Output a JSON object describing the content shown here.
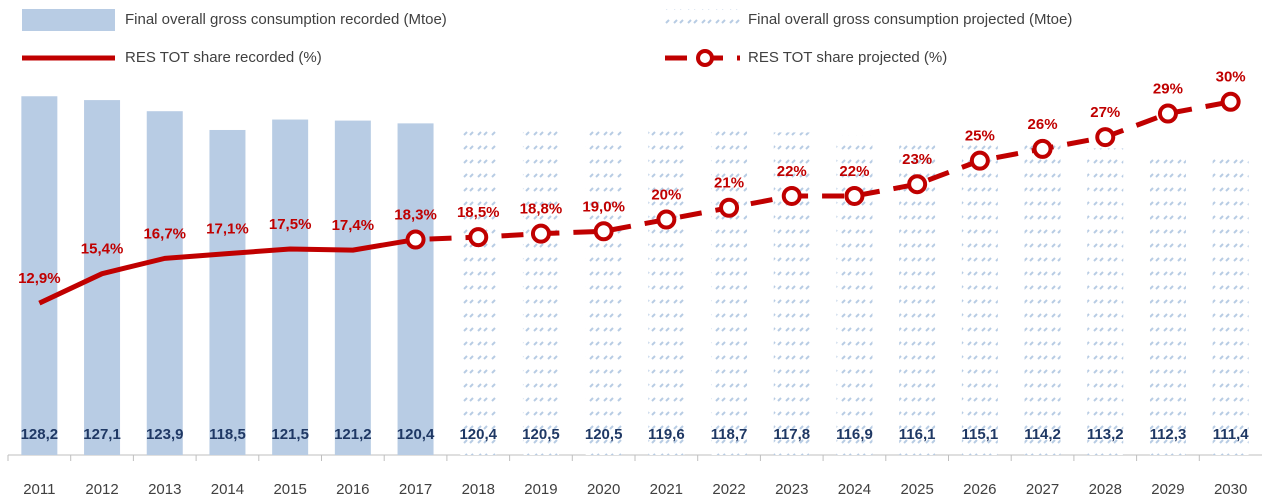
{
  "chart_data": {
    "type": "bar-line",
    "categories": [
      "2011",
      "2012",
      "2013",
      "2014",
      "2015",
      "2016",
      "2017",
      "2018",
      "2019",
      "2020",
      "2021",
      "2022",
      "2023",
      "2024",
      "2025",
      "2026",
      "2027",
      "2028",
      "2029",
      "2030"
    ],
    "ylim": [
      25,
      130
    ],
    "y2lim": [
      0,
      31
    ],
    "series": [
      {
        "name": "Final overall gross consumption recorded (Mtoe)",
        "kind": "bar",
        "color": "#b8cce4",
        "values": [
          128.2,
          127.1,
          123.9,
          118.5,
          121.5,
          121.2,
          120.4,
          null,
          null,
          null,
          null,
          null,
          null,
          null,
          null,
          null,
          null,
          null,
          null,
          null
        ],
        "value_labels": [
          "128,2",
          "127,1",
          "123,9",
          "118,5",
          "121,5",
          "121,2",
          "120,4",
          null,
          null,
          null,
          null,
          null,
          null,
          null,
          null,
          null,
          null,
          null,
          null,
          null
        ]
      },
      {
        "name": "Final overall gross consumption projected (Mtoe)",
        "kind": "bar",
        "pattern": true,
        "color": "#b8cce4",
        "values": [
          null,
          null,
          null,
          null,
          null,
          null,
          null,
          120.4,
          120.5,
          120.5,
          119.6,
          118.7,
          117.8,
          116.9,
          116.1,
          115.1,
          114.2,
          113.2,
          112.3,
          111.4
        ],
        "value_labels": [
          null,
          null,
          null,
          null,
          null,
          null,
          null,
          "120,4",
          "120,5",
          "120,5",
          "119,6",
          "118,7",
          "117,8",
          "116,9",
          "116,1",
          "115,1",
          "114,2",
          "113,2",
          "112,3",
          "111,4"
        ]
      },
      {
        "name": "RES TOT share recorded (%)",
        "kind": "line",
        "axis": "y2",
        "color": "#c00000",
        "values": [
          12.9,
          15.4,
          16.7,
          17.1,
          17.5,
          17.4,
          18.3,
          null,
          null,
          null,
          null,
          null,
          null,
          null,
          null,
          null,
          null,
          null,
          null,
          null
        ],
        "value_labels": [
          "12,9%",
          "15,4%",
          "16,7%",
          "17,1%",
          "17,5%",
          "17,4%",
          "18,3%",
          null,
          null,
          null,
          null,
          null,
          null,
          null,
          null,
          null,
          null,
          null,
          null,
          null
        ]
      },
      {
        "name": "RES TOT share projected (%)",
        "kind": "line",
        "axis": "y2",
        "dashed": true,
        "markers": true,
        "color": "#c00000",
        "values": [
          null,
          null,
          null,
          null,
          null,
          null,
          18.3,
          18.5,
          18.8,
          19.0,
          20,
          21,
          22,
          22,
          23,
          25,
          26,
          27,
          29,
          30
        ],
        "value_labels": [
          null,
          null,
          null,
          null,
          null,
          null,
          null,
          "18,5%",
          "18,8%",
          "19,0%",
          "20%",
          "21%",
          "22%",
          "22%",
          "23%",
          "25%",
          "26%",
          "27%",
          "29%",
          "30%"
        ]
      }
    ]
  }
}
